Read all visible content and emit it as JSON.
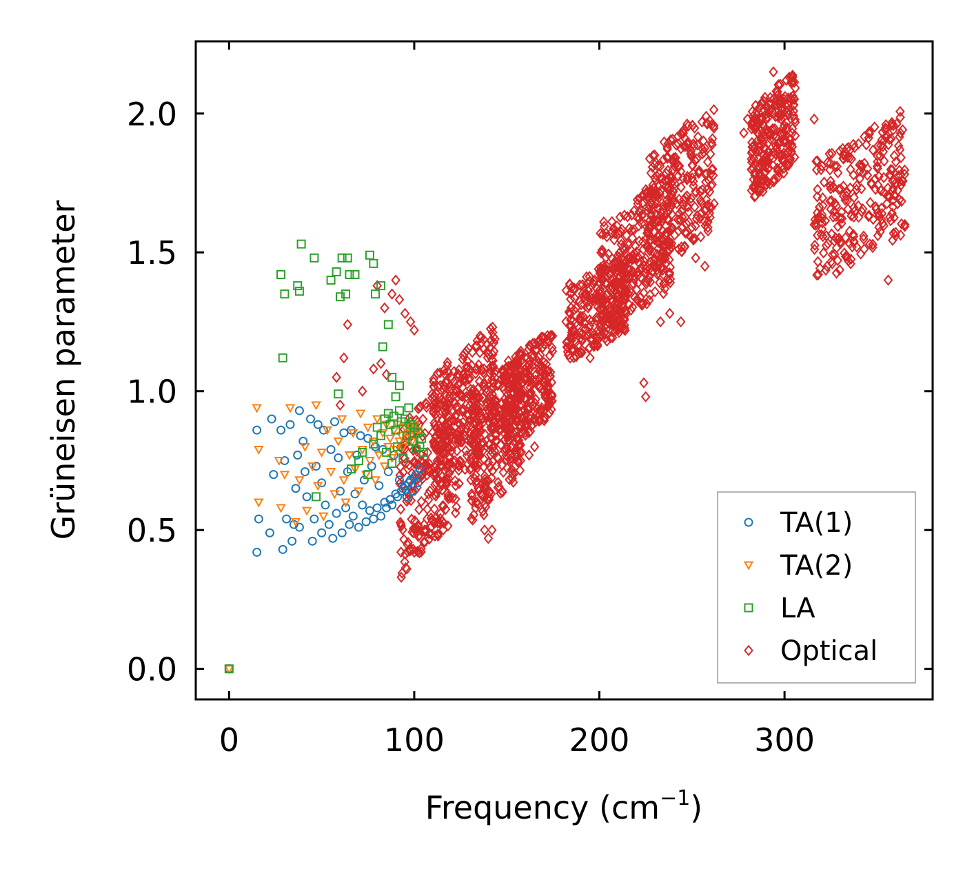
{
  "chart_data": {
    "type": "scatter",
    "title": "",
    "xlabel": "Frequency (cm",
    "xlabel_sup": "−1",
    "xlabel_suffix": ")",
    "ylabel": "Grüneisen parameter",
    "xlim": [
      -18,
      380
    ],
    "ylim": [
      -0.11,
      2.26
    ],
    "xticks": [
      0,
      100,
      200,
      300
    ],
    "xtick_labels": [
      "0",
      "100",
      "200",
      "300"
    ],
    "yticks": [
      0.0,
      0.5,
      1.0,
      1.5,
      2.0
    ],
    "ytick_labels": [
      "0.0",
      "0.5",
      "1.0",
      "1.5",
      "2.0"
    ],
    "legend_position": "lower-right",
    "series": [
      {
        "name": "TA(1)",
        "marker": "circle",
        "color": "#1f77b4",
        "points": [
          [
            0,
            0
          ],
          [
            15,
            0.42
          ],
          [
            15,
            0.86
          ],
          [
            16,
            0.54
          ],
          [
            22,
            0.49
          ],
          [
            23,
            0.9
          ],
          [
            24,
            0.7
          ],
          [
            28,
            0.86
          ],
          [
            29,
            0.43
          ],
          [
            30,
            0.75
          ],
          [
            31,
            0.54
          ],
          [
            33,
            0.88
          ],
          [
            34,
            0.46
          ],
          [
            35,
            0.52
          ],
          [
            36,
            0.65
          ],
          [
            37,
            0.77
          ],
          [
            38,
            0.93
          ],
          [
            38,
            0.51
          ],
          [
            40,
            0.82
          ],
          [
            41,
            0.71
          ],
          [
            42,
            0.62
          ],
          [
            44,
            0.9
          ],
          [
            45,
            0.46
          ],
          [
            46,
            0.54
          ],
          [
            47,
            0.73
          ],
          [
            48,
            0.88
          ],
          [
            50,
            0.49
          ],
          [
            50,
            0.67
          ],
          [
            51,
            0.86
          ],
          [
            52,
            0.59
          ],
          [
            54,
            0.52
          ],
          [
            55,
            0.79
          ],
          [
            56,
            0.47
          ],
          [
            57,
            0.89
          ],
          [
            58,
            0.56
          ],
          [
            59,
            0.76
          ],
          [
            60,
            0.64
          ],
          [
            61,
            0.49
          ],
          [
            62,
            0.85
          ],
          [
            63,
            0.58
          ],
          [
            64,
            0.71
          ],
          [
            65,
            0.52
          ],
          [
            66,
            0.86
          ],
          [
            67,
            0.55
          ],
          [
            68,
            0.63
          ],
          [
            69,
            0.77
          ],
          [
            70,
            0.51
          ],
          [
            71,
            0.84
          ],
          [
            72,
            0.59
          ],
          [
            73,
            0.68
          ],
          [
            74,
            0.53
          ],
          [
            75,
            0.83
          ],
          [
            76,
            0.57
          ],
          [
            77,
            0.73
          ],
          [
            78,
            0.54
          ],
          [
            79,
            0.8
          ],
          [
            80,
            0.58
          ],
          [
            81,
            0.66
          ],
          [
            82,
            0.55
          ],
          [
            83,
            0.79
          ],
          [
            84,
            0.6
          ],
          [
            85,
            0.58
          ],
          [
            86,
            0.71
          ],
          [
            87,
            0.61
          ],
          [
            88,
            0.59
          ],
          [
            89,
            0.77
          ],
          [
            90,
            0.63
          ],
          [
            91,
            0.62
          ],
          [
            92,
            0.68
          ],
          [
            93,
            0.64
          ],
          [
            94,
            0.65
          ],
          [
            95,
            0.66
          ],
          [
            96,
            0.62
          ],
          [
            97,
            0.67
          ],
          [
            98,
            0.68
          ],
          [
            99,
            0.64
          ],
          [
            100,
            0.69
          ],
          [
            101,
            0.7
          ],
          [
            102,
            0.67
          ],
          [
            103,
            0.72
          ]
        ]
      },
      {
        "name": "TA(2)",
        "marker": "triangle-down",
        "color": "#ff7f0e",
        "points": [
          [
            0,
            0
          ],
          [
            15,
            0.94
          ],
          [
            16,
            0.79
          ],
          [
            16,
            0.6
          ],
          [
            27,
            0.75
          ],
          [
            28,
            0.58
          ],
          [
            30,
            0.7
          ],
          [
            33,
            0.94
          ],
          [
            36,
            0.53
          ],
          [
            38,
            0.68
          ],
          [
            41,
            0.8
          ],
          [
            42,
            0.57
          ],
          [
            45,
            0.73
          ],
          [
            47,
            0.95
          ],
          [
            48,
            0.66
          ],
          [
            50,
            0.78
          ],
          [
            51,
            0.55
          ],
          [
            53,
            0.86
          ],
          [
            55,
            0.71
          ],
          [
            57,
            0.63
          ],
          [
            59,
            0.82
          ],
          [
            61,
            0.9
          ],
          [
            62,
            0.68
          ],
          [
            63,
            0.6
          ],
          [
            65,
            0.77
          ],
          [
            67,
            0.85
          ],
          [
            68,
            0.72
          ],
          [
            70,
            0.64
          ],
          [
            71,
            0.92
          ],
          [
            72,
            0.79
          ],
          [
            74,
            0.7
          ],
          [
            75,
            0.87
          ],
          [
            76,
            0.75
          ],
          [
            78,
            0.82
          ],
          [
            79,
            0.68
          ],
          [
            80,
            0.9
          ],
          [
            81,
            0.77
          ],
          [
            83,
            0.85
          ],
          [
            84,
            0.73
          ],
          [
            85,
            0.88
          ],
          [
            86,
            0.8
          ],
          [
            87,
            0.83
          ],
          [
            88,
            0.76
          ],
          [
            89,
            0.86
          ],
          [
            90,
            0.79
          ],
          [
            91,
            0.88
          ],
          [
            92,
            0.82
          ],
          [
            93,
            0.84
          ],
          [
            94,
            0.8
          ],
          [
            95,
            0.87
          ],
          [
            96,
            0.83
          ],
          [
            97,
            0.85
          ],
          [
            98,
            0.86
          ],
          [
            99,
            0.82
          ],
          [
            100,
            0.88
          ],
          [
            101,
            0.84
          ],
          [
            102,
            0.86
          ]
        ]
      },
      {
        "name": "LA",
        "marker": "square",
        "color": "#2ca02c",
        "points": [
          [
            0,
            0
          ],
          [
            28,
            1.42
          ],
          [
            29,
            1.12
          ],
          [
            30,
            1.35
          ],
          [
            37,
            1.38
          ],
          [
            38,
            1.36
          ],
          [
            39,
            1.53
          ],
          [
            46,
            1.48
          ],
          [
            47,
            0.62
          ],
          [
            55,
            1.4
          ],
          [
            58,
            1.43
          ],
          [
            59,
            0.99
          ],
          [
            60,
            1.34
          ],
          [
            61,
            1.48
          ],
          [
            63,
            1.35
          ],
          [
            64,
            1.48
          ],
          [
            65,
            1.42
          ],
          [
            68,
            1.42
          ],
          [
            76,
            1.49
          ],
          [
            78,
            1.46
          ],
          [
            79,
            1.35
          ],
          [
            82,
            1.38
          ],
          [
            83,
            1.16
          ],
          [
            86,
            1.24
          ],
          [
            88,
            1.05
          ],
          [
            90,
            0.98
          ],
          [
            92,
            1.02
          ],
          [
            66,
            0.72
          ],
          [
            70,
            0.75
          ],
          [
            72,
            0.78
          ],
          [
            75,
            0.7
          ],
          [
            78,
            0.81
          ],
          [
            80,
            0.87
          ],
          [
            82,
            0.84
          ],
          [
            84,
            0.9
          ],
          [
            85,
            0.78
          ],
          [
            86,
            0.92
          ],
          [
            87,
            0.88
          ],
          [
            88,
            0.74
          ],
          [
            89,
            0.91
          ],
          [
            90,
            0.86
          ],
          [
            91,
            0.8
          ],
          [
            92,
            0.93
          ],
          [
            93,
            0.89
          ],
          [
            94,
            0.76
          ],
          [
            95,
            0.9
          ],
          [
            96,
            0.84
          ],
          [
            97,
            0.94
          ],
          [
            98,
            0.88
          ],
          [
            99,
            0.82
          ],
          [
            100,
            0.87
          ],
          [
            101,
            0.79
          ],
          [
            102,
            0.85
          ],
          [
            103,
            0.8
          ],
          [
            104,
            0.83
          ],
          [
            105,
            0.78
          ]
        ]
      },
      {
        "name": "Optical",
        "marker": "diamond",
        "color": "#d62728",
        "clusters": [
          {
            "x_range": [
              92,
              125
            ],
            "y_range": [
              0.33,
              1.1
            ]
          },
          {
            "x_range": [
              110,
              145
            ],
            "y_range": [
              0.62,
              1.25
            ]
          },
          {
            "x_range": [
              130,
              158
            ],
            "y_range": [
              0.5,
              1.15
            ]
          },
          {
            "x_range": [
              148,
              175
            ],
            "y_range": [
              0.78,
              1.23
            ]
          },
          {
            "x_range": [
              182,
              215
            ],
            "y_range": [
              1.1,
              1.5
            ]
          },
          {
            "x_range": [
              200,
              240
            ],
            "y_range": [
              1.2,
              1.78
            ]
          },
          {
            "x_range": [
              225,
              262
            ],
            "y_range": [
              1.4,
              2.04
            ]
          },
          {
            "x_range": [
              282,
              306
            ],
            "y_range": [
              1.68,
              2.16
            ]
          },
          {
            "x_range": [
              316,
              365
            ],
            "y_range": [
              1.37,
              2.02
            ]
          }
        ],
        "points": [
          [
            80,
            1.38
          ],
          [
            84,
            1.3
          ],
          [
            88,
            1.35
          ],
          [
            90,
            1.4
          ],
          [
            92,
            1.33
          ],
          [
            95,
            1.28
          ],
          [
            98,
            1.25
          ],
          [
            100,
            1.22
          ],
          [
            62,
            1.12
          ],
          [
            64,
            1.24
          ],
          [
            58,
            1.05
          ],
          [
            60,
            0.95
          ],
          [
            72,
            1.0
          ],
          [
            78,
            1.08
          ],
          [
            82,
            1.1
          ],
          [
            85,
            1.06
          ],
          [
            100,
            0.42
          ],
          [
            93,
            0.33
          ],
          [
            96,
            0.36
          ],
          [
            225,
            0.98
          ],
          [
            224,
            1.03
          ],
          [
            233,
            1.25
          ],
          [
            238,
            1.28
          ],
          [
            244,
            1.25
          ],
          [
            140,
            0.47
          ],
          [
            138,
            0.5
          ],
          [
            142,
            0.5
          ],
          [
            165,
            0.8
          ],
          [
            162,
            0.77
          ],
          [
            172,
            1.2
          ],
          [
            195,
            1.12
          ],
          [
            252,
            1.48
          ],
          [
            257,
            1.45
          ],
          [
            278,
            1.93
          ],
          [
            280,
            1.98
          ],
          [
            316,
            1.98
          ],
          [
            294,
            2.15
          ],
          [
            297,
            2.1
          ],
          [
            356,
            1.4
          ],
          [
            360,
            1.56
          ],
          [
            365,
            1.6
          ]
        ]
      }
    ]
  }
}
